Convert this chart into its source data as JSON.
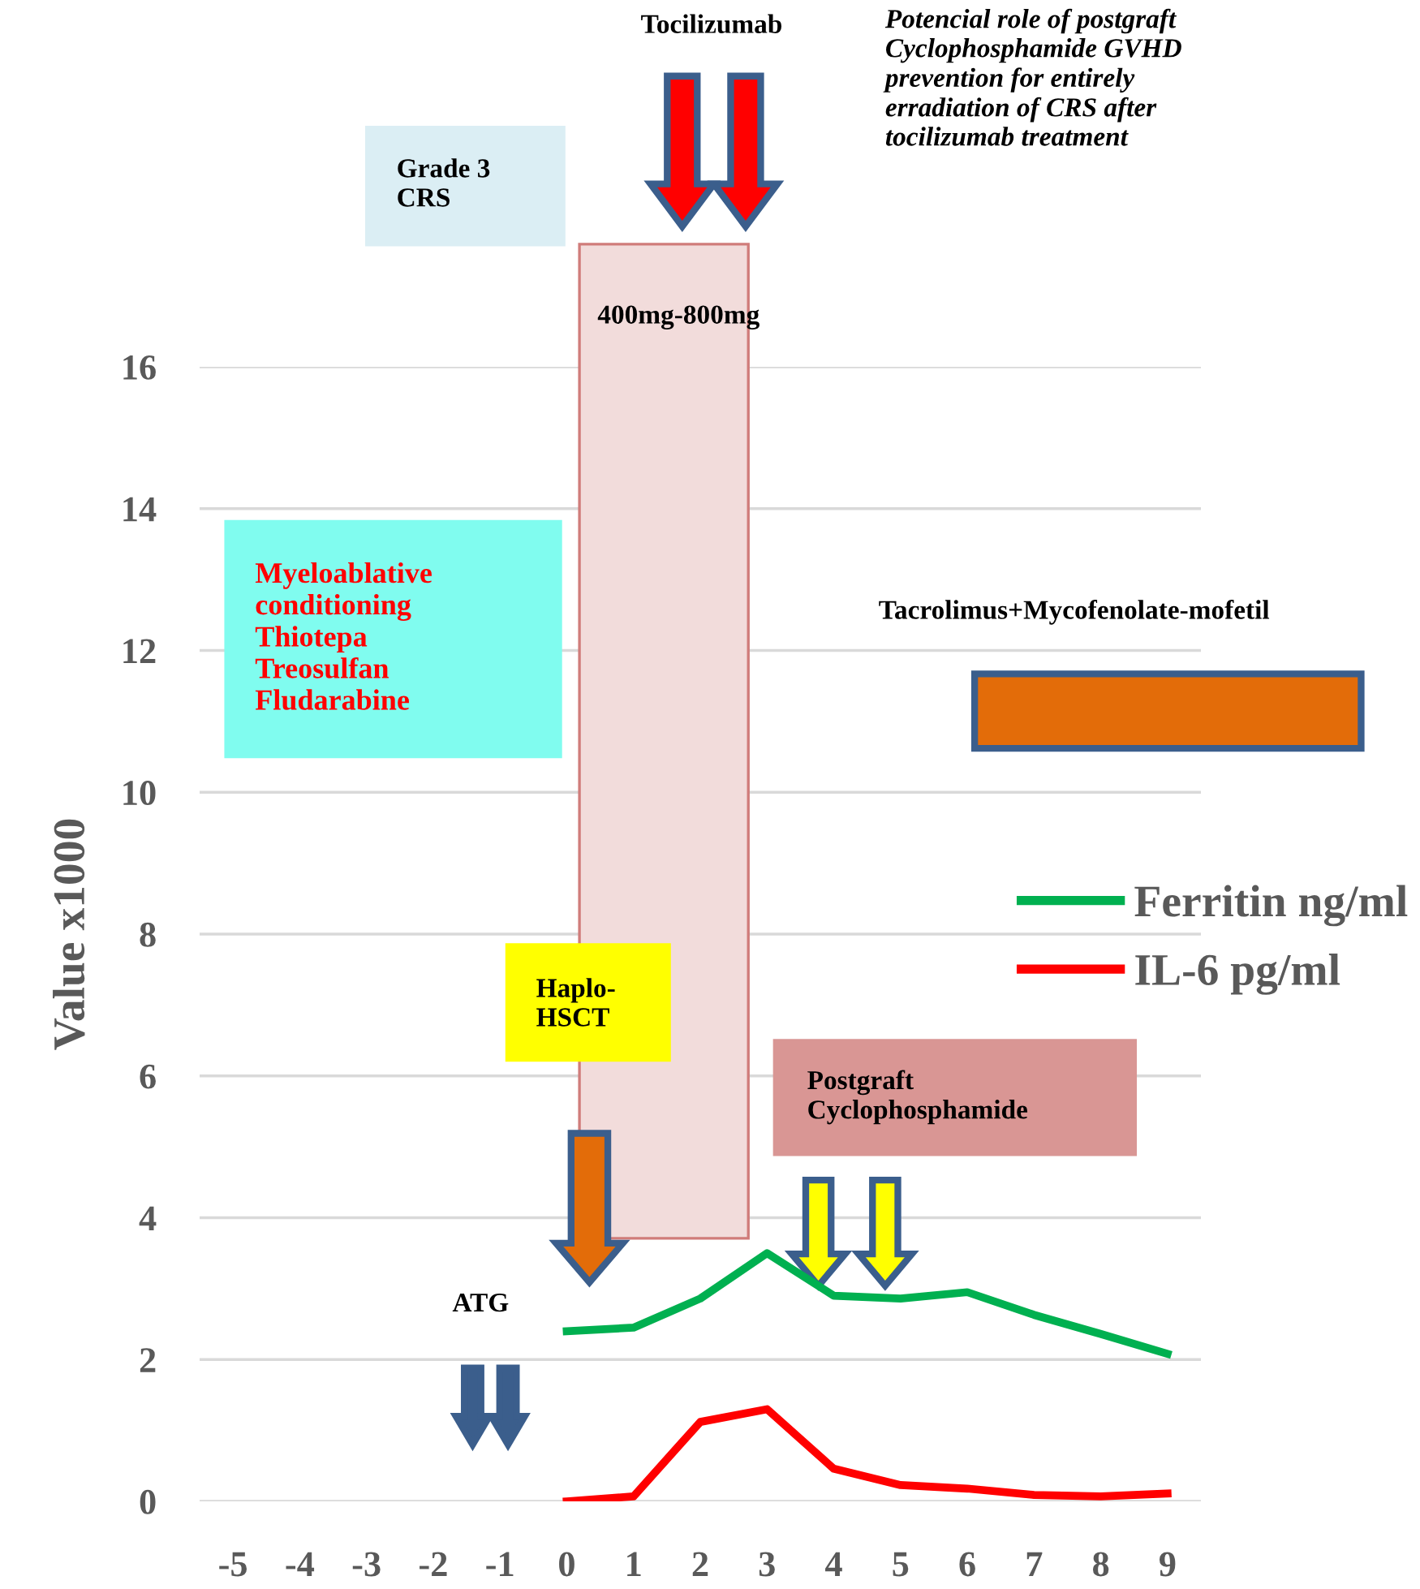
{
  "chart_data": {
    "type": "line",
    "ylabel": "Value x1000",
    "x": [
      0,
      1,
      2,
      3,
      4,
      5,
      6,
      7,
      8,
      9
    ],
    "series": [
      {
        "name": "Ferritin ng/ml",
        "color": "#00b050",
        "values": [
          2.4,
          2.45,
          2.86,
          3.5,
          2.9,
          2.86,
          2.95,
          2.63,
          2.36,
          2.08
        ]
      },
      {
        "name": "IL-6 pg/ml",
        "color": "#ff0000",
        "values": [
          0,
          0.07,
          1.12,
          1.3,
          0.46,
          0.23,
          0.18,
          0.09,
          0.07,
          0.11
        ]
      }
    ],
    "xlim": [
      -5.5,
      9.5
    ],
    "xticks": [
      -5,
      -4,
      -3,
      -2,
      -1,
      0,
      1,
      2,
      3,
      4,
      5,
      6,
      7,
      8,
      9
    ],
    "ylim": [
      0,
      16
    ],
    "yticks": [
      0,
      2,
      4,
      6,
      8,
      10,
      12,
      14,
      16
    ],
    "grid": "y",
    "legend": "right",
    "marker": "none",
    "line_style": "solid",
    "annotations": [
      "Tocilizumab",
      "Potencial role of postgraft\nCyclophosphamide GVHD\nprevention for entirely\nerradiation of CRS after\ntocilizumab treatment",
      "Grade 3\nCRS",
      "400mg-800mg",
      "Myeloablative\nconditioning\nThiotepa\nTreosulfan\nFludarabine",
      "Tacrolimus+Mycofenolate-mofetil",
      "Haplo-\nHSCT",
      "Postgraft\nCyclophosphamide",
      "ATG"
    ]
  }
}
